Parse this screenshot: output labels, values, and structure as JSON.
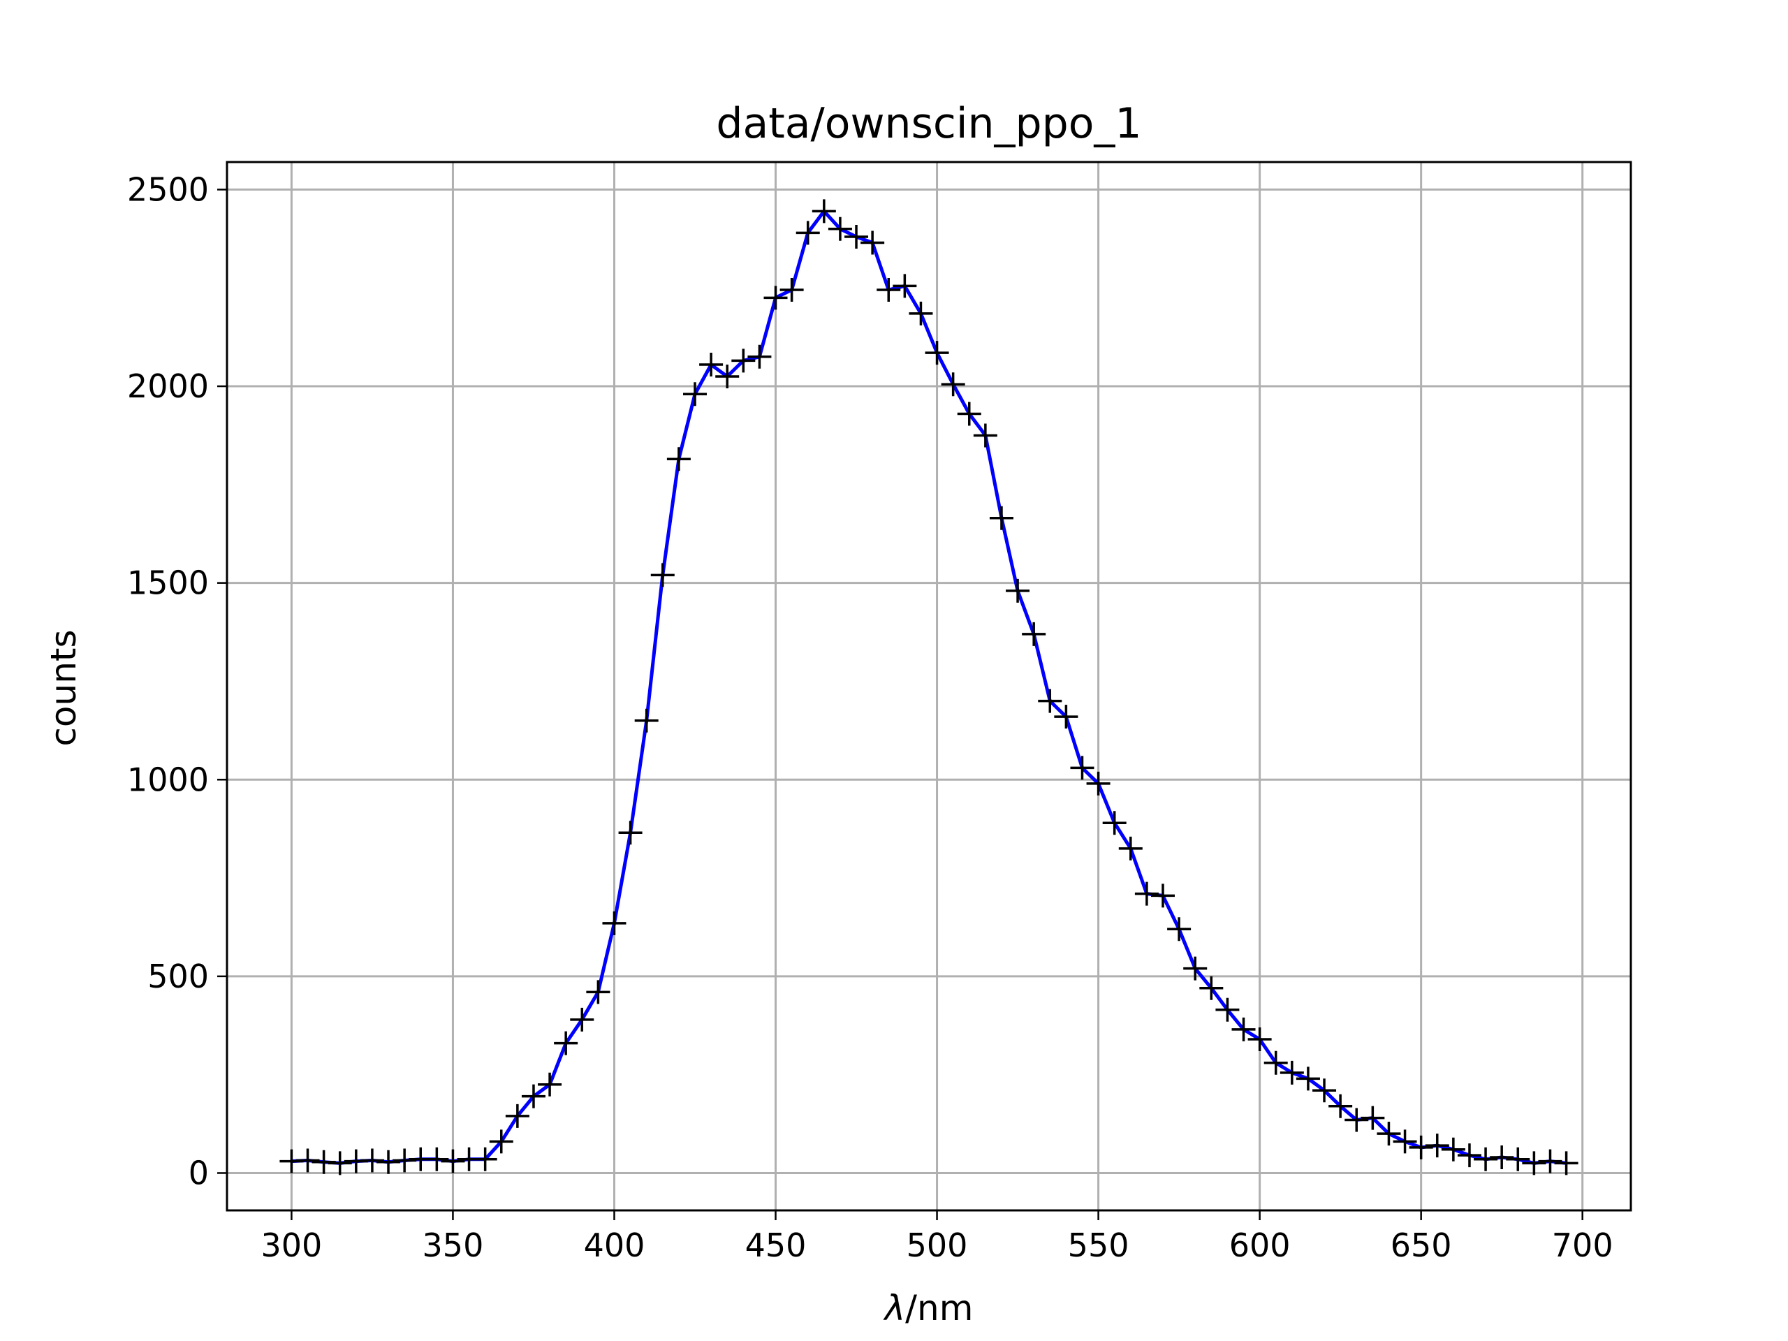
{
  "chart_data": {
    "type": "line",
    "title": "data/ownscin_ppo_1",
    "xlabel_symbol": "λ",
    "xlabel_unit": "/nm",
    "ylabel": "counts",
    "xlim": [
      280,
      715
    ],
    "ylim": [
      -95,
      2570
    ],
    "xticks": [
      300,
      350,
      400,
      450,
      500,
      550,
      600,
      650,
      700
    ],
    "yticks": [
      0,
      500,
      1000,
      1500,
      2000,
      2500
    ],
    "grid": true,
    "legend": "none",
    "colors": {
      "line": "#0000ff",
      "marker": "#000000",
      "grid": "#b0b0b0"
    },
    "series": [
      {
        "x": [
          300,
          305,
          310,
          315,
          320,
          325,
          330,
          335,
          340,
          345,
          350,
          355,
          360,
          365,
          370,
          375,
          380,
          385,
          390,
          395,
          400,
          405,
          410,
          415,
          420,
          425,
          430,
          435,
          440,
          445,
          450,
          455,
          460,
          465,
          470,
          475,
          480,
          485,
          490,
          495,
          500,
          505,
          510,
          515,
          520,
          525,
          530,
          535,
          540,
          545,
          550,
          555,
          560,
          565,
          570,
          575,
          580,
          585,
          590,
          595,
          600,
          605,
          610,
          615,
          620,
          625,
          630,
          635,
          640,
          645,
          650,
          655,
          660,
          665,
          670,
          675,
          680,
          685,
          690,
          695
        ],
        "y": [
          30,
          32,
          28,
          25,
          30,
          32,
          28,
          32,
          35,
          35,
          30,
          35,
          35,
          80,
          145,
          195,
          225,
          330,
          390,
          460,
          635,
          865,
          1150,
          1520,
          1815,
          1980,
          2055,
          2025,
          2065,
          2075,
          2225,
          2245,
          2390,
          2445,
          2400,
          2380,
          2365,
          2245,
          2255,
          2185,
          2085,
          2005,
          1930,
          1875,
          1665,
          1480,
          1370,
          1200,
          1160,
          1030,
          990,
          890,
          825,
          710,
          705,
          620,
          520,
          470,
          415,
          365,
          340,
          280,
          255,
          240,
          210,
          170,
          135,
          140,
          100,
          80,
          65,
          70,
          60,
          45,
          35,
          40,
          35,
          25,
          30,
          25
        ]
      }
    ]
  }
}
